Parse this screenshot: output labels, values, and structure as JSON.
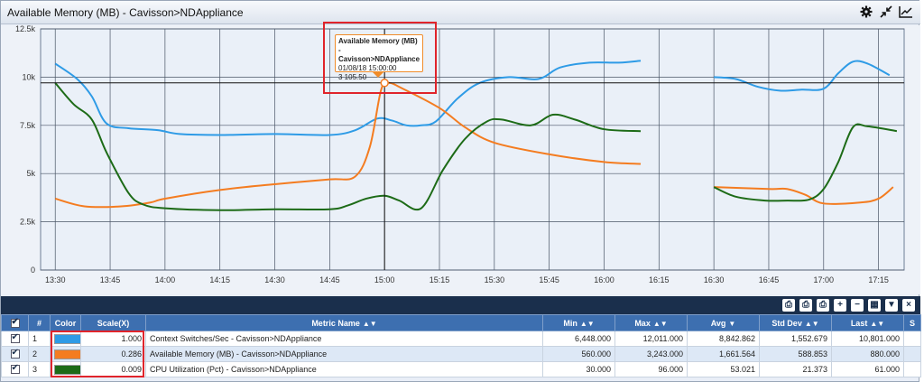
{
  "window": {
    "title": "Available Memory (MB) - Cavisson>NDAppliance"
  },
  "toolbar": {
    "icons": [
      "gear-icon",
      "collapse-icon",
      "trend-icon"
    ]
  },
  "chart_data": {
    "type": "line",
    "title": "Available Memory (MB) - Cavisson>NDAppliance",
    "x_ticks": [
      "13:30",
      "13:45",
      "14:00",
      "14:15",
      "14:30",
      "14:45",
      "15:00",
      "15:15",
      "15:30",
      "15:45",
      "16:00",
      "16:15",
      "16:30",
      "16:45",
      "17:00",
      "17:15"
    ],
    "y_ticks": [
      "0",
      "2.5k",
      "5k",
      "7.5k",
      "10k",
      "12.5k"
    ],
    "ylim": [
      0,
      12500
    ],
    "xlim": [
      "13:26",
      "17:22"
    ],
    "crosshair": {
      "x": "15:00",
      "y": 9700
    },
    "series": [
      {
        "name": "Context Switches/Sec - Cavisson>NDAppliance",
        "color": "#2e9be6",
        "segments": [
          [
            [
              "13:30",
              10700
            ],
            [
              "13:36",
              9900
            ],
            [
              "13:40",
              9000
            ],
            [
              "13:44",
              7600
            ],
            [
              "13:50",
              7350
            ],
            [
              "13:58",
              7250
            ],
            [
              "14:04",
              7050
            ],
            [
              "14:15",
              7000
            ],
            [
              "14:30",
              7050
            ],
            [
              "14:45",
              7000
            ],
            [
              "14:52",
              7250
            ],
            [
              "14:58",
              7850
            ],
            [
              "15:02",
              7750
            ],
            [
              "15:06",
              7500
            ],
            [
              "15:10",
              7500
            ],
            [
              "15:14",
              7700
            ],
            [
              "15:20",
              8900
            ],
            [
              "15:26",
              9700
            ],
            [
              "15:34",
              10000
            ],
            [
              "15:42",
              9900
            ],
            [
              "15:48",
              10500
            ],
            [
              "15:56",
              10750
            ],
            [
              "16:04",
              10750
            ],
            [
              "16:10",
              10850
            ]
          ],
          [
            [
              "16:30",
              10000
            ],
            [
              "16:36",
              9900
            ],
            [
              "16:42",
              9500
            ],
            [
              "16:48",
              9300
            ],
            [
              "16:54",
              9350
            ],
            [
              "17:00",
              9400
            ],
            [
              "17:04",
              10200
            ],
            [
              "17:08",
              10800
            ],
            [
              "17:12",
              10700
            ],
            [
              "17:18",
              10100
            ]
          ]
        ]
      },
      {
        "name": "Available Memory (MB) - Cavisson>NDAppliance",
        "color": "#f47c20",
        "segments": [
          [
            [
              "13:30",
              3700
            ],
            [
              "13:38",
              3300
            ],
            [
              "13:48",
              3300
            ],
            [
              "13:56",
              3500
            ],
            [
              "14:00",
              3700
            ],
            [
              "14:15",
              4150
            ],
            [
              "14:30",
              4450
            ],
            [
              "14:45",
              4700
            ],
            [
              "14:52",
              4850
            ],
            [
              "14:56",
              6400
            ],
            [
              "14:59",
              9300
            ],
            [
              "15:01",
              9700
            ],
            [
              "15:05",
              9400
            ],
            [
              "15:15",
              8400
            ],
            [
              "15:22",
              7400
            ],
            [
              "15:30",
              6600
            ],
            [
              "15:45",
              6000
            ],
            [
              "16:00",
              5600
            ],
            [
              "16:10",
              5500
            ]
          ],
          [
            [
              "16:30",
              4300
            ],
            [
              "16:45",
              4200
            ],
            [
              "16:50",
              4200
            ],
            [
              "16:55",
              3900
            ],
            [
              "17:00",
              3450
            ],
            [
              "17:10",
              3500
            ],
            [
              "17:15",
              3700
            ],
            [
              "17:19",
              4300
            ]
          ]
        ]
      },
      {
        "name": "CPU Utilization (Pct) - Cavisson>NDAppliance",
        "color": "#1d6b17",
        "segments": [
          [
            [
              "13:30",
              9700
            ],
            [
              "13:35",
              8600
            ],
            [
              "13:40",
              7800
            ],
            [
              "13:44",
              6100
            ],
            [
              "13:50",
              4000
            ],
            [
              "13:54",
              3400
            ],
            [
              "14:00",
              3200
            ],
            [
              "14:15",
              3100
            ],
            [
              "14:30",
              3150
            ],
            [
              "14:45",
              3150
            ],
            [
              "14:50",
              3350
            ],
            [
              "14:55",
              3700
            ],
            [
              "15:00",
              3850
            ],
            [
              "15:04",
              3600
            ],
            [
              "15:10",
              3200
            ],
            [
              "15:16",
              5200
            ],
            [
              "15:22",
              6800
            ],
            [
              "15:28",
              7700
            ],
            [
              "15:32",
              7800
            ],
            [
              "15:40",
              7500
            ],
            [
              "15:46",
              8050
            ],
            [
              "15:52",
              7800
            ],
            [
              "16:00",
              7300
            ],
            [
              "16:10",
              7200
            ]
          ],
          [
            [
              "16:30",
              4300
            ],
            [
              "16:36",
              3800
            ],
            [
              "16:44",
              3600
            ],
            [
              "16:50",
              3600
            ],
            [
              "16:56",
              3650
            ],
            [
              "17:00",
              4200
            ],
            [
              "17:04",
              5600
            ],
            [
              "17:08",
              7400
            ],
            [
              "17:12",
              7450
            ],
            [
              "17:20",
              7200
            ]
          ]
        ]
      }
    ]
  },
  "tooltip": {
    "title": "Available Memory (MB) - Cavisson>NDAppliance",
    "timestamp": "01/08/18 15:00:00",
    "value": "3 105.50"
  },
  "table": {
    "headers": {
      "num": "#",
      "color": "Color",
      "scale": "Scale(X)",
      "metric": "Metric Name",
      "min": "Min",
      "max": "Max",
      "avg": "Avg",
      "stddev": "Std Dev",
      "last": "Last",
      "extra": "S"
    },
    "rows": [
      {
        "num": "1",
        "color": "#2e9be6",
        "scale": "1.000",
        "metric": "Context Switches/Sec - Cavisson>NDAppliance",
        "min": "6,448.000",
        "max": "12,011.000",
        "avg": "8,842.862",
        "stddev": "1,552.679",
        "last": "10,801.000"
      },
      {
        "num": "2",
        "color": "#f47c20",
        "scale": "0.286",
        "metric": "Available Memory (MB) - Cavisson>NDAppliance",
        "min": "560.000",
        "max": "3,243.000",
        "avg": "1,661.564",
        "stddev": "588.853",
        "last": "880.000"
      },
      {
        "num": "3",
        "color": "#1d6b17",
        "scale": "0.009",
        "metric": "CPU Utilization (Pct) - Cavisson>NDAppliance",
        "min": "30.000",
        "max": "96.000",
        "avg": "53.021",
        "stddev": "21.373",
        "last": "61.000"
      }
    ]
  }
}
